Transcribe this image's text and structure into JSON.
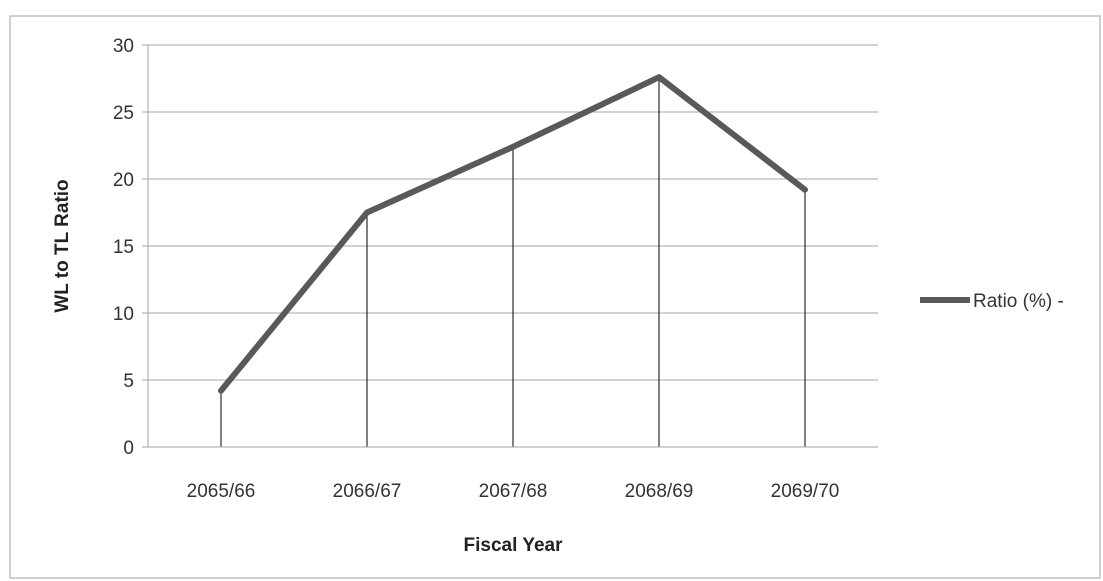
{
  "chart_data": {
    "type": "line",
    "title": "",
    "xlabel": "Fiscal Year",
    "ylabel": "WL to TL Ratio",
    "categories": [
      "2065/66",
      "2066/67",
      "2067/68",
      "2068/69",
      "2069/70"
    ],
    "series": [
      {
        "name": "Ratio (%) -",
        "values": [
          4.2,
          17.5,
          22.4,
          27.6,
          19.2
        ]
      }
    ],
    "ylim": [
      0,
      30
    ],
    "yticks": [
      "0",
      "5",
      "10",
      "15",
      "20",
      "25",
      "30"
    ],
    "grid": "horizontal",
    "drop_lines": true,
    "legend_position": "right",
    "colors": {
      "line": "#595959",
      "grid": "#a6a6a6",
      "drop_line": "#000000",
      "frame": "#bfbfbf"
    }
  }
}
